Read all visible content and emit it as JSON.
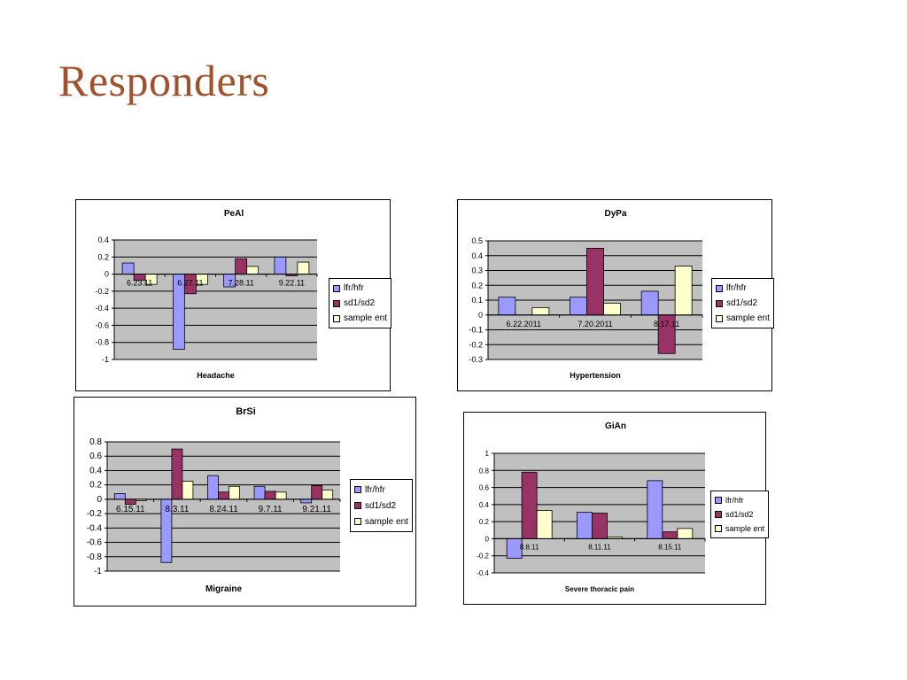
{
  "slide": {
    "title": "Responders"
  },
  "legend": [
    "lfr/hfr",
    "sd1/sd2",
    "sample ent"
  ],
  "colors": {
    "series": [
      "#9999ff",
      "#993366",
      "#ffffcc"
    ],
    "plot_bg": "#c0c0c0",
    "title": "#a0522d"
  },
  "chart_data": [
    {
      "type": "bar",
      "title": "PeAl",
      "xlabel": "Headache",
      "ylabel": "",
      "categories": [
        "6.23.11",
        "6.27.11",
        "7.28.11",
        "9.22.11"
      ],
      "ylim": [
        -1,
        0.4
      ],
      "yticks": [
        0.4,
        0.2,
        0,
        -0.2,
        -0.4,
        -0.6,
        -0.8,
        -1
      ],
      "ytick_labels": [
        "0.4",
        "0.2",
        "0",
        "-0.2",
        "-0.4",
        "-0.6",
        "-0.8",
        "-1"
      ],
      "legend_position": "right",
      "series": [
        {
          "name": "lfr/hfr",
          "values": [
            0.13,
            -0.88,
            -0.15,
            0.2
          ]
        },
        {
          "name": "sd1/sd2",
          "values": [
            -0.07,
            -0.23,
            0.18,
            -0.02
          ]
        },
        {
          "name": "sample ent",
          "values": [
            -0.12,
            -0.12,
            0.09,
            0.14
          ]
        }
      ]
    },
    {
      "type": "bar",
      "title": "DyPa",
      "xlabel": "Hypertension",
      "ylabel": "",
      "categories": [
        "6.22.2011",
        "7.20.2011",
        "8.17.11"
      ],
      "ylim": [
        -0.3,
        0.5
      ],
      "yticks": [
        0.5,
        0.4,
        0.3,
        0.2,
        0.1,
        0,
        -0.1,
        -0.2,
        -0.3
      ],
      "ytick_labels": [
        "0.5",
        "0.4",
        "0.3",
        "0.2",
        "0.1",
        "0",
        "-0.1",
        "-0.2",
        "-0.3"
      ],
      "legend_position": "right",
      "series": [
        {
          "name": "lfr/hfr",
          "values": [
            0.12,
            0.12,
            0.16
          ]
        },
        {
          "name": "sd1/sd2",
          "values": [
            0,
            0.45,
            -0.26
          ]
        },
        {
          "name": "sample ent",
          "values": [
            0.05,
            0.08,
            0.33
          ]
        }
      ]
    },
    {
      "type": "bar",
      "title": "BrSi",
      "xlabel": "Migraine",
      "ylabel": "",
      "categories": [
        "6.15.11",
        "8.3.11",
        "8.24.11",
        "9.7.11",
        "9.21.11"
      ],
      "ylim": [
        -1,
        0.8
      ],
      "yticks": [
        0.8,
        0.6,
        0.4,
        0.2,
        0,
        -0.2,
        -0.4,
        -0.6,
        -0.8,
        -1
      ],
      "ytick_labels": [
        "0.8",
        "0.6",
        "0.4",
        "0.2",
        "0",
        "-0.2",
        "-0.4",
        "-0.6",
        "-0.8",
        "-1"
      ],
      "legend_position": "right",
      "series": [
        {
          "name": "lfr/hfr",
          "values": [
            0.08,
            -0.88,
            0.33,
            0.18,
            -0.05
          ]
        },
        {
          "name": "sd1/sd2",
          "values": [
            -0.07,
            0.7,
            0.1,
            0.11,
            0.19
          ]
        },
        {
          "name": "sample ent",
          "values": [
            -0.02,
            0.25,
            0.18,
            0.1,
            0.13
          ]
        }
      ]
    },
    {
      "type": "bar",
      "title": "GiAn",
      "xlabel": "Severe thoracic pain",
      "ylabel": "",
      "categories": [
        "8.8.11",
        "8.11.11",
        "8.15.11"
      ],
      "ylim": [
        -0.4,
        1
      ],
      "yticks": [
        1,
        0.8,
        0.6,
        0.4,
        0.2,
        0,
        -0.2,
        -0.4
      ],
      "ytick_labels": [
        "1",
        "0.8",
        "0.6",
        "0.4",
        "0.2",
        "0",
        "-0.2",
        "-0.4"
      ],
      "legend_position": "right",
      "series": [
        {
          "name": "lfr/hfr",
          "values": [
            -0.23,
            0.31,
            0.68
          ]
        },
        {
          "name": "sd1/sd2",
          "values": [
            0.78,
            0.3,
            0.08
          ]
        },
        {
          "name": "sample ent",
          "values": [
            0.33,
            0.02,
            0.12
          ]
        }
      ]
    }
  ]
}
